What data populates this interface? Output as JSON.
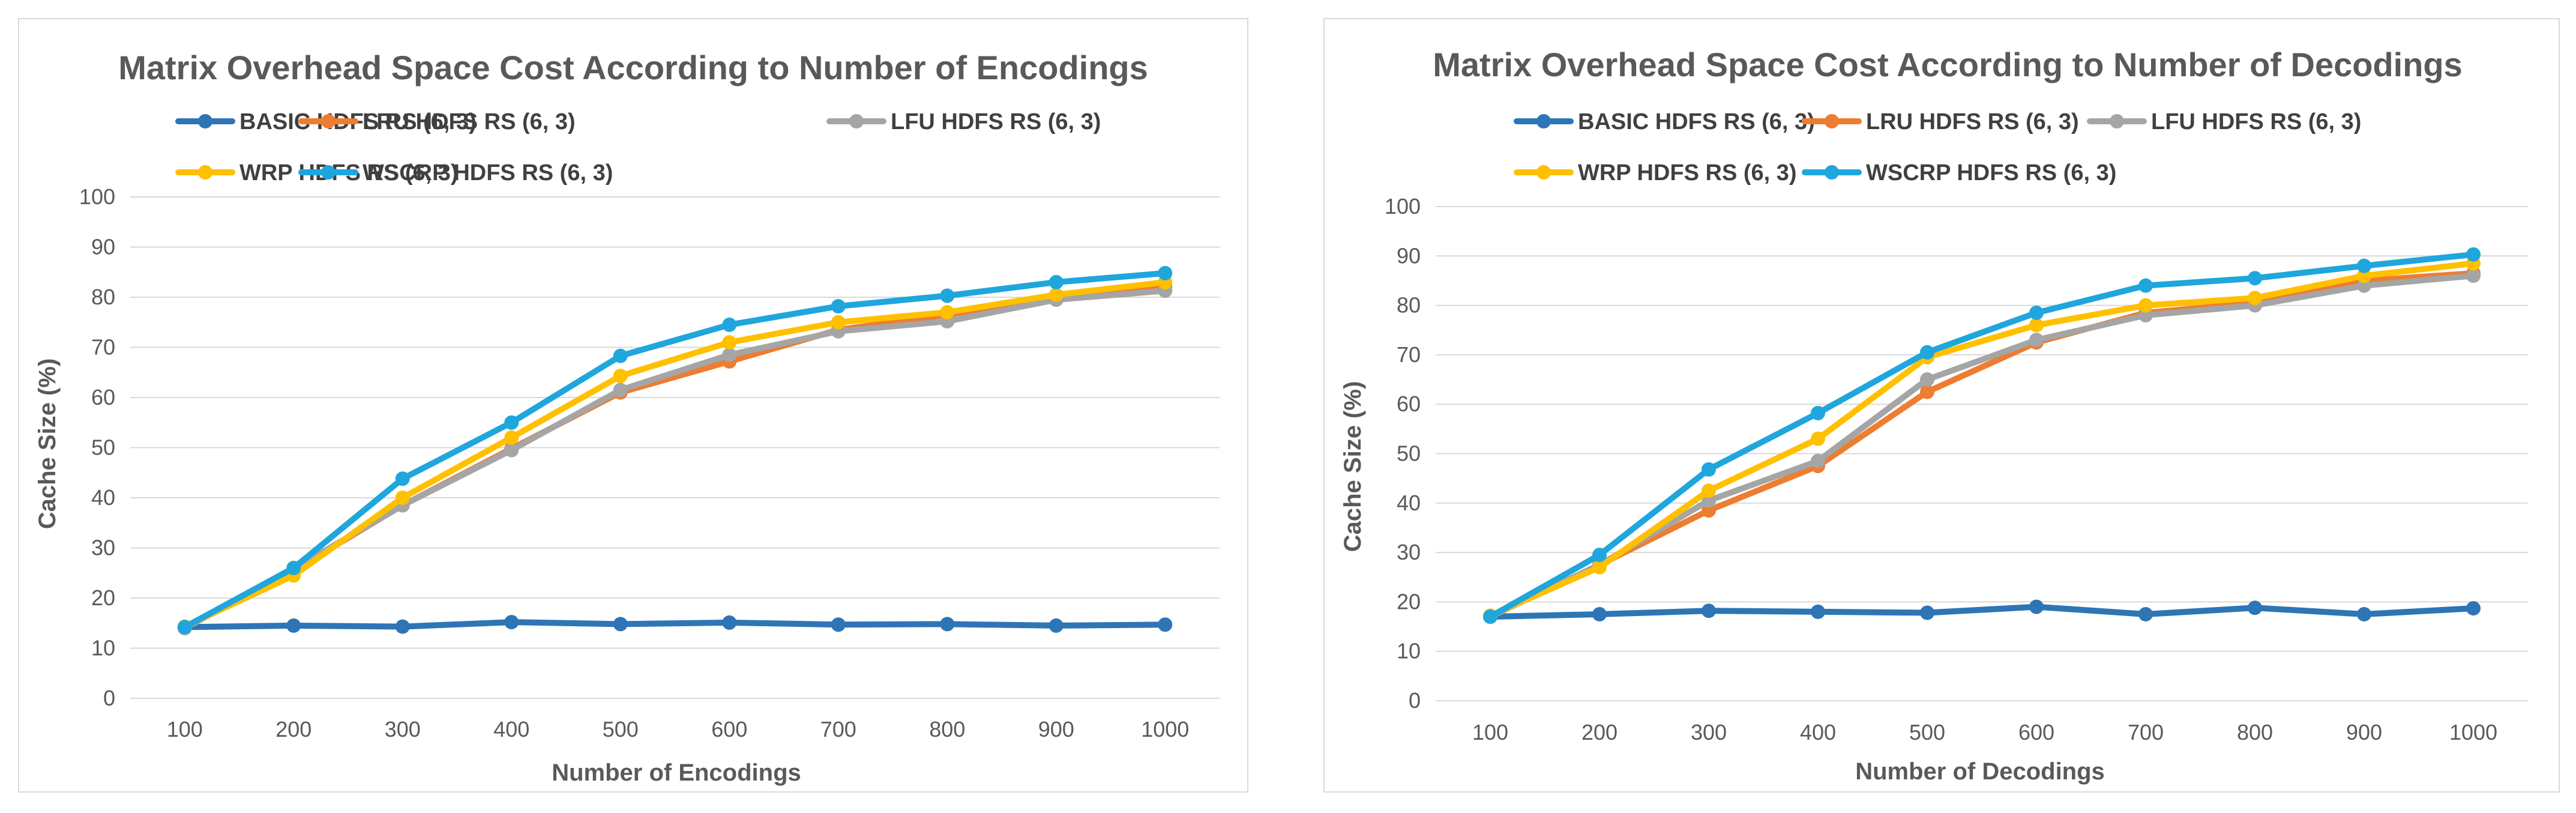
{
  "colors": {
    "BASIC": "#2e75b6",
    "LRU": "#ed7d31",
    "LFU": "#a5a5a5",
    "WRP": "#ffc000",
    "WSCRP": "#1fa6dc"
  },
  "chart_data": [
    {
      "type": "line",
      "title": "Matrix Overhead Space Cost According to Number of  Encodings",
      "xlabel": "Number of Encodings",
      "ylabel": "Cache Size (%)",
      "categories": [
        "100",
        "200",
        "300",
        "400",
        "500",
        "600",
        "700",
        "800",
        "900",
        "1000"
      ],
      "ylim": [
        0,
        100
      ],
      "yticks": [
        "0",
        "10",
        "20",
        "30",
        "40",
        "50",
        "60",
        "70",
        "80",
        "90",
        "100"
      ],
      "grid": true,
      "legend_position": "top",
      "series": [
        {
          "name": "BASIC HDFS RS (6, 3)",
          "color_key": "BASIC",
          "values": [
            14.2,
            14.5,
            14.3,
            15.2,
            14.8,
            15.1,
            14.7,
            14.8,
            14.5,
            14.7
          ]
        },
        {
          "name": "LRU HDFS RS (6, 3)",
          "color_key": "LRU",
          "values": [
            14.0,
            25.5,
            38.5,
            49.8,
            61.0,
            67.2,
            73.5,
            76.5,
            80.0,
            82.2
          ]
        },
        {
          "name": "LFU HDFS RS (6, 3)",
          "color_key": "LFU",
          "values": [
            14.0,
            25.8,
            38.5,
            49.5,
            61.5,
            68.5,
            73.2,
            75.2,
            79.5,
            81.3
          ]
        },
        {
          "name": "WRP HDFS RS (6, 3)",
          "color_key": "WRP",
          "values": [
            14.3,
            24.5,
            40.0,
            52.0,
            64.3,
            71.0,
            75.0,
            77.0,
            80.5,
            83.0
          ]
        },
        {
          "name": "WSCRP HDFS RS (6, 3)",
          "color_key": "WSCRP",
          "values": [
            14.2,
            26.0,
            43.8,
            55.0,
            68.3,
            74.5,
            78.2,
            80.3,
            83.0,
            84.8
          ]
        }
      ]
    },
    {
      "type": "line",
      "title": "Matrix Overhead Space Cost According to Number of Decodings",
      "xlabel": "Number of Decodings",
      "ylabel": "Cache Size (%)",
      "categories": [
        "100",
        "200",
        "300",
        "400",
        "500",
        "600",
        "700",
        "800",
        "900",
        "1000"
      ],
      "ylim": [
        0,
        100
      ],
      "yticks": [
        "0",
        "10",
        "20",
        "30",
        "40",
        "50",
        "60",
        "70",
        "80",
        "90",
        "100"
      ],
      "grid": true,
      "legend_position": "top",
      "series": [
        {
          "name": "BASIC HDFS RS (6, 3)",
          "color_key": "BASIC",
          "values": [
            17.0,
            17.5,
            18.2,
            18.0,
            17.8,
            19.0,
            17.5,
            18.8,
            17.5,
            18.7
          ]
        },
        {
          "name": "LRU HDFS RS (6, 3)",
          "color_key": "LRU",
          "values": [
            17.0,
            27.5,
            38.5,
            47.5,
            62.5,
            72.5,
            78.5,
            80.5,
            85.0,
            86.5
          ]
        },
        {
          "name": "LFU HDFS RS (6, 3)",
          "color_key": "LFU",
          "values": [
            17.0,
            27.5,
            40.5,
            48.5,
            65.0,
            73.0,
            78.0,
            80.0,
            84.0,
            86.0
          ]
        },
        {
          "name": "WRP HDFS RS (6, 3)",
          "color_key": "WRP",
          "values": [
            17.2,
            27.0,
            42.5,
            53.0,
            69.5,
            76.0,
            80.0,
            81.5,
            86.0,
            88.5
          ]
        },
        {
          "name": "WSCRP HDFS RS (6, 3)",
          "color_key": "WSCRP",
          "values": [
            17.0,
            29.5,
            46.8,
            58.2,
            70.5,
            78.5,
            84.0,
            85.5,
            88.0,
            90.3
          ]
        }
      ]
    }
  ]
}
